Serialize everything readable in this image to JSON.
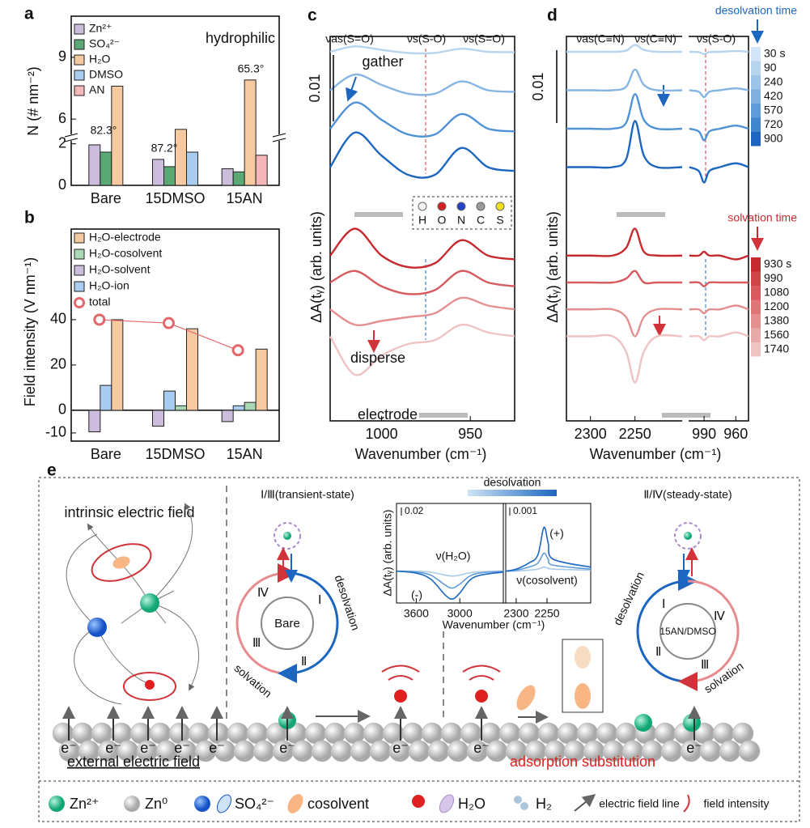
{
  "chart_data": [
    {
      "type": "bar",
      "label": "a",
      "ylabel": "N (# nm⁻²)",
      "annotations": [
        "hydrophilic",
        "82.3°",
        "87.2°",
        "65.3°"
      ],
      "categories": [
        "Bare",
        "15DMSO",
        "15AN"
      ],
      "series": [
        {
          "name": "Zn²⁺",
          "color": "#cbbddb",
          "values": [
            1.95,
            1.25,
            0.8
          ]
        },
        {
          "name": "SO₄²⁻",
          "color": "#5aa874",
          "values": [
            1.6,
            0.9,
            0.65
          ]
        },
        {
          "name": "H₂O",
          "color": "#f7c9a0",
          "values": [
            7.6,
            5.5,
            7.9
          ]
        },
        {
          "name": "DMSO",
          "color": "#a8cdf0",
          "values": [
            null,
            1.6,
            null
          ]
        },
        {
          "name": "AN",
          "color": "#f5b7b7",
          "values": [
            null,
            null,
            1.45
          ]
        }
      ],
      "ylim": [
        0,
        11
      ],
      "ybreak": [
        2.3,
        5.1
      ],
      "yticks": [
        0,
        2,
        6,
        9
      ]
    },
    {
      "type": "bar",
      "label": "b",
      "ylabel": "Field intensity (V nm⁻¹)",
      "categories": [
        "Bare",
        "15DMSO",
        "15AN"
      ],
      "series": [
        {
          "name": "H₂O-electrode",
          "color": "#f7c9a0",
          "values": [
            40,
            36,
            27
          ]
        },
        {
          "name": "H₂O-cosolvent",
          "color": "#a8d8b5",
          "values": [
            null,
            2,
            3.5
          ]
        },
        {
          "name": "H₂O-solvent",
          "color": "#cbbddb",
          "values": [
            -9.5,
            -7,
            -5
          ]
        },
        {
          "name": "H₂O-ion",
          "color": "#a8cdf0",
          "values": [
            11,
            8.5,
            2
          ]
        },
        {
          "name": "total",
          "color": "#e4676b",
          "type": "line",
          "values": [
            40,
            38.5,
            26.5
          ]
        }
      ],
      "ylim": [
        -13.6,
        80
      ],
      "yticks": [
        -10,
        0,
        20,
        40
      ]
    },
    {
      "type": "spectra",
      "label": "c",
      "xlabel": "Wavenumber (cm⁻¹)",
      "ylabel": "ΔA(tᵧ) (arb. units)",
      "peaks": [
        "νas(S=O)",
        "νs(S-O)",
        "νs(S=O)"
      ],
      "annotations": [
        "gather",
        "disperse",
        "electrode"
      ],
      "atoms": [
        "H",
        "O",
        "N",
        "C",
        "S"
      ],
      "scale_bar": 0.01,
      "ylim": [
        0,
        100
      ],
      "segments": [
        {
          "xlim": [
            1029,
            925
          ],
          "xticks": [
            1000,
            950
          ],
          "x": [
            1029,
            1015,
            1000,
            985,
            970,
            955,
            940,
            925
          ],
          "series": [
            {
              "color": "#b7d4ee",
              "values": [
                96,
                97.4,
                96.5,
                95.7,
                95.7,
                96.8,
                96,
                95.9
              ]
            },
            {
              "color": "#86b5e3",
              "values": [
                86,
                90.1,
                87.4,
                85.1,
                85.1,
                88.3,
                86,
                85.6
              ]
            },
            {
              "color": "#4f93d6",
              "values": [
                76,
                82.8,
                78.3,
                74.5,
                74.5,
                79.8,
                76,
                75.3
              ]
            },
            {
              "color": "#1c66c0",
              "values": [
                66,
                75,
                69,
                64,
                64,
                71,
                66,
                65
              ]
            },
            {
              "color": "#c62a2f",
              "values": [
                43,
                50,
                43,
                40,
                41,
                47,
                43,
                42
              ]
            },
            {
              "color": "#d75a5e",
              "values": [
                36,
                39,
                35,
                33,
                34,
                39,
                36,
                35
              ]
            },
            {
              "color": "#e48f90",
              "values": [
                29,
                25,
                26,
                27,
                28,
                32,
                30,
                29
              ]
            },
            {
              "color": "#f0c3c3",
              "values": [
                22,
                12,
                17,
                20,
                21,
                25,
                23,
                22
              ]
            }
          ]
        }
      ]
    },
    {
      "type": "spectra",
      "label": "d",
      "xlabel": "Wavenumber (cm⁻¹)",
      "ylabel": "ΔA(tᵧ) (arb. units)",
      "peaks": [
        "νas(C≡N)",
        "νs(C≡N)",
        "νs(S-O)"
      ],
      "scale_bar": 0.01,
      "ylim": [
        0,
        100
      ],
      "colorbars": [
        {
          "title": "desolvation time",
          "labels": [
            "30 s",
            "90",
            "240",
            "420",
            "570",
            "720",
            "900"
          ],
          "colors": [
            "#d3e5f6",
            "#b7d4ee",
            "#9cc3e8",
            "#7fb0df",
            "#5f9bd8",
            "#3f86cf",
            "#1c66c0"
          ]
        },
        {
          "title": "solvation time",
          "labels": [
            "930 s",
            "990",
            "1080",
            "1200",
            "1380",
            "1560",
            "1740"
          ],
          "colors": [
            "#c62a2f",
            "#d04548",
            "#d75a5e",
            "#de7577",
            "#e48f90",
            "#eaa9a9",
            "#f0c3c3"
          ]
        }
      ],
      "segments": [
        {
          "xlim": [
            2327,
            2197
          ],
          "xticks": [
            2300,
            2250
          ],
          "x": [
            2327,
            2300,
            2275,
            2260,
            2250,
            2240,
            2225,
            2197
          ],
          "series": [
            {
              "color": "#b7d4ee",
              "values": [
                96,
                96,
                96,
                96.3,
                97.8,
                96.5,
                96,
                96
              ]
            },
            {
              "color": "#86b5e3",
              "values": [
                86,
                86,
                86,
                86.9,
                91.4,
                87.4,
                86,
                86
              ]
            },
            {
              "color": "#4f93d6",
              "values": [
                76,
                76,
                76,
                77.5,
                85,
                78.3,
                76,
                76
              ]
            },
            {
              "color": "#1c66c0",
              "values": [
                66,
                66,
                66,
                68,
                78,
                69,
                66,
                66
              ]
            },
            {
              "color": "#c62a2f",
              "values": [
                43,
                43,
                43,
                45,
                50,
                44,
                43,
                43
              ]
            },
            {
              "color": "#d75a5e",
              "values": [
                36,
                36,
                36,
                37,
                39,
                36,
                36,
                36
              ]
            },
            {
              "color": "#e48f90",
              "values": [
                29,
                29,
                29,
                27,
                22,
                27,
                29,
                29
              ]
            },
            {
              "color": "#f0c3c3",
              "values": [
                22,
                22,
                22,
                18,
                10,
                18,
                22,
                22
              ]
            }
          ]
        },
        {
          "xlim": [
            1004.6,
            948
          ],
          "xticks": [
            990,
            960
          ],
          "x": [
            1004,
            995,
            990,
            985,
            975,
            960,
            948
          ],
          "series": [
            {
              "color": "#b7d4ee",
              "values": [
                96,
                95.9,
                95.4,
                95.9,
                96,
                96.2,
                96
              ]
            },
            {
              "color": "#86b5e3",
              "values": [
                86,
                85.6,
                84.2,
                85.6,
                86,
                86.5,
                86
              ]
            },
            {
              "color": "#4f93d6",
              "values": [
                76,
                75.3,
                73,
                75.3,
                76,
                76.8,
                76
              ]
            },
            {
              "color": "#1c66c0",
              "values": [
                66,
                65,
                62,
                65,
                66,
                67,
                66
              ]
            },
            {
              "color": "#c62a2f",
              "values": [
                43,
                43,
                44,
                43,
                43,
                42,
                43
              ]
            },
            {
              "color": "#d75a5e",
              "values": [
                36,
                36,
                35,
                36,
                36,
                36,
                36
              ]
            },
            {
              "color": "#e48f90",
              "values": [
                29,
                29,
                28,
                29,
                29,
                30,
                29
              ]
            },
            {
              "color": "#f0c3c3",
              "values": [
                22,
                22,
                21,
                22,
                22,
                23,
                22
              ]
            }
          ]
        }
      ]
    },
    {
      "type": "spectra",
      "xlabel": "Wavenumber (cm⁻¹)",
      "ylabel": "ΔA(tᵧ) (arb. units)",
      "gradient_label": "desolvation",
      "annotations": [
        "ν(H₂O)",
        "ν(cosolvent)",
        "(-)",
        "(+)"
      ],
      "scale_bars": [
        0.02,
        0.001
      ],
      "ylim": [
        0,
        100
      ],
      "segments": [
        {
          "xlim": [
            3872,
            2400
          ],
          "xticks": [
            3600,
            3000
          ],
          "x": [
            3872,
            3600,
            3400,
            3200,
            3100,
            3000,
            2800,
            2400
          ],
          "series": [
            {
              "color": "#a9cbe8",
              "values": [
                32,
                32,
                31,
                28,
                27,
                28,
                31,
                32
              ]
            },
            {
              "color": "#5f9bd8",
              "values": [
                32,
                31,
                28,
                18,
                15,
                19,
                29,
                32
              ]
            },
            {
              "color": "#1c66c0",
              "values": [
                32,
                30,
                24,
                8,
                4,
                10,
                26,
                31
              ]
            }
          ]
        },
        {
          "xlim": [
            2317,
            2179
          ],
          "xticks": [
            2300,
            2250
          ],
          "x": [
            2317,
            2300,
            2280,
            2265,
            2255,
            2248,
            2240,
            2179
          ],
          "series": [
            {
              "color": "#a9cbe8",
              "values": [
                32,
                32,
                33,
                34,
                36,
                35,
                34,
                33
              ]
            },
            {
              "color": "#5f9bd8",
              "values": [
                32,
                33,
                36,
                40,
                50,
                44,
                38,
                34
              ]
            },
            {
              "color": "#1c66c0",
              "values": [
                32,
                34,
                40,
                48,
                76,
                60,
                44,
                36
              ]
            }
          ]
        }
      ]
    }
  ],
  "schematic": {
    "label": "e",
    "intrinsic": "intrinsic electric field",
    "external": "external electric field",
    "transient": "Ⅰ/Ⅲ(transient-state)",
    "steady": "Ⅱ/Ⅳ(steady-state)",
    "adsorption": "adsorption substitution",
    "electron": "e⁻",
    "cycles": [
      {
        "center": "Bare",
        "desolvation": "desolvation",
        "solvation": "solvation",
        "steps": [
          "Ⅰ",
          "Ⅱ",
          "Ⅲ",
          "Ⅳ"
        ]
      },
      {
        "center": "15AN/DMSO",
        "desolvation": "desolvation",
        "solvation": "solvation",
        "steps": [
          "Ⅰ",
          "Ⅱ",
          "Ⅲ",
          "Ⅳ"
        ]
      }
    ],
    "legend": [
      "Zn²⁺",
      "Zn⁰",
      "SO₄²⁻",
      "cosolvent",
      "H₂O",
      "H₂",
      "electric field line",
      "field intensity"
    ]
  }
}
